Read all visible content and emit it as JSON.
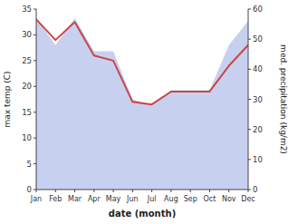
{
  "chart_data": {
    "type": "line",
    "xlabel": "date (month)",
    "ylabel": "max temp (C)",
    "y2label": "med. precipitation (kg/m2)",
    "categories": [
      "Jan",
      "Feb",
      "Mar",
      "Apr",
      "May",
      "Jun",
      "Jul",
      "Aug",
      "Sep",
      "Oct",
      "Nov",
      "Dec"
    ],
    "series": [
      {
        "type": "area",
        "axis": "y2",
        "color": "#c8d0f0",
        "values": [
          57,
          48,
          57,
          46,
          46,
          30,
          28,
          33,
          33,
          33,
          48,
          56
        ]
      },
      {
        "type": "line",
        "color": "#cd4444",
        "values": [
          33,
          29,
          32.5,
          26,
          25,
          17,
          16.5,
          19,
          19,
          19,
          24,
          28
        ]
      }
    ],
    "ylim": [
      0,
      35
    ],
    "yticks": [
      0,
      5,
      10,
      15,
      20,
      25,
      30,
      35
    ],
    "y2lim": [
      0,
      60
    ],
    "y2ticks": [
      0,
      10,
      20,
      30,
      40,
      50,
      60
    ],
    "grid": false
  }
}
